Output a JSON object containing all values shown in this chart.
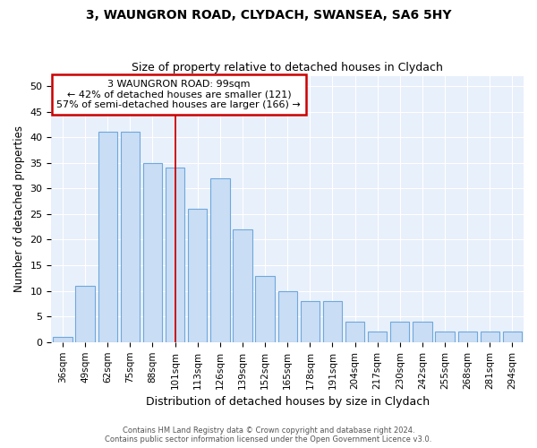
{
  "title1": "3, WAUNGRON ROAD, CLYDACH, SWANSEA, SA6 5HY",
  "title2": "Size of property relative to detached houses in Clydach",
  "xlabel": "Distribution of detached houses by size in Clydach",
  "ylabel": "Number of detached properties",
  "categories": [
    "36sqm",
    "49sqm",
    "62sqm",
    "75sqm",
    "88sqm",
    "101sqm",
    "113sqm",
    "126sqm",
    "139sqm",
    "152sqm",
    "165sqm",
    "178sqm",
    "191sqm",
    "204sqm",
    "217sqm",
    "230sqm",
    "242sqm",
    "255sqm",
    "268sqm",
    "281sqm",
    "294sqm"
  ],
  "values": [
    1,
    11,
    41,
    41,
    35,
    34,
    26,
    32,
    22,
    13,
    10,
    8,
    8,
    4,
    2,
    4,
    4,
    2,
    2,
    2,
    2
  ],
  "bar_color": "#c9ddf5",
  "bar_edge_color": "#6fa8dc",
  "bg_color": "#e8f0fb",
  "grid_color": "#ffffff",
  "red_line_x": 5,
  "annotation_box_text": "3 WAUNGRON ROAD: 99sqm\n← 42% of detached houses are smaller (121)\n57% of semi-detached houses are larger (166) →",
  "annotation_box_color": "#ffffff",
  "annotation_box_edge_color": "#cc0000",
  "footer_text": "Contains HM Land Registry data © Crown copyright and database right 2024.\nContains public sector information licensed under the Open Government Licence v3.0.",
  "ylim": [
    0,
    52
  ],
  "yticks": [
    0,
    5,
    10,
    15,
    20,
    25,
    30,
    35,
    40,
    45,
    50
  ],
  "bar_width": 0.85
}
